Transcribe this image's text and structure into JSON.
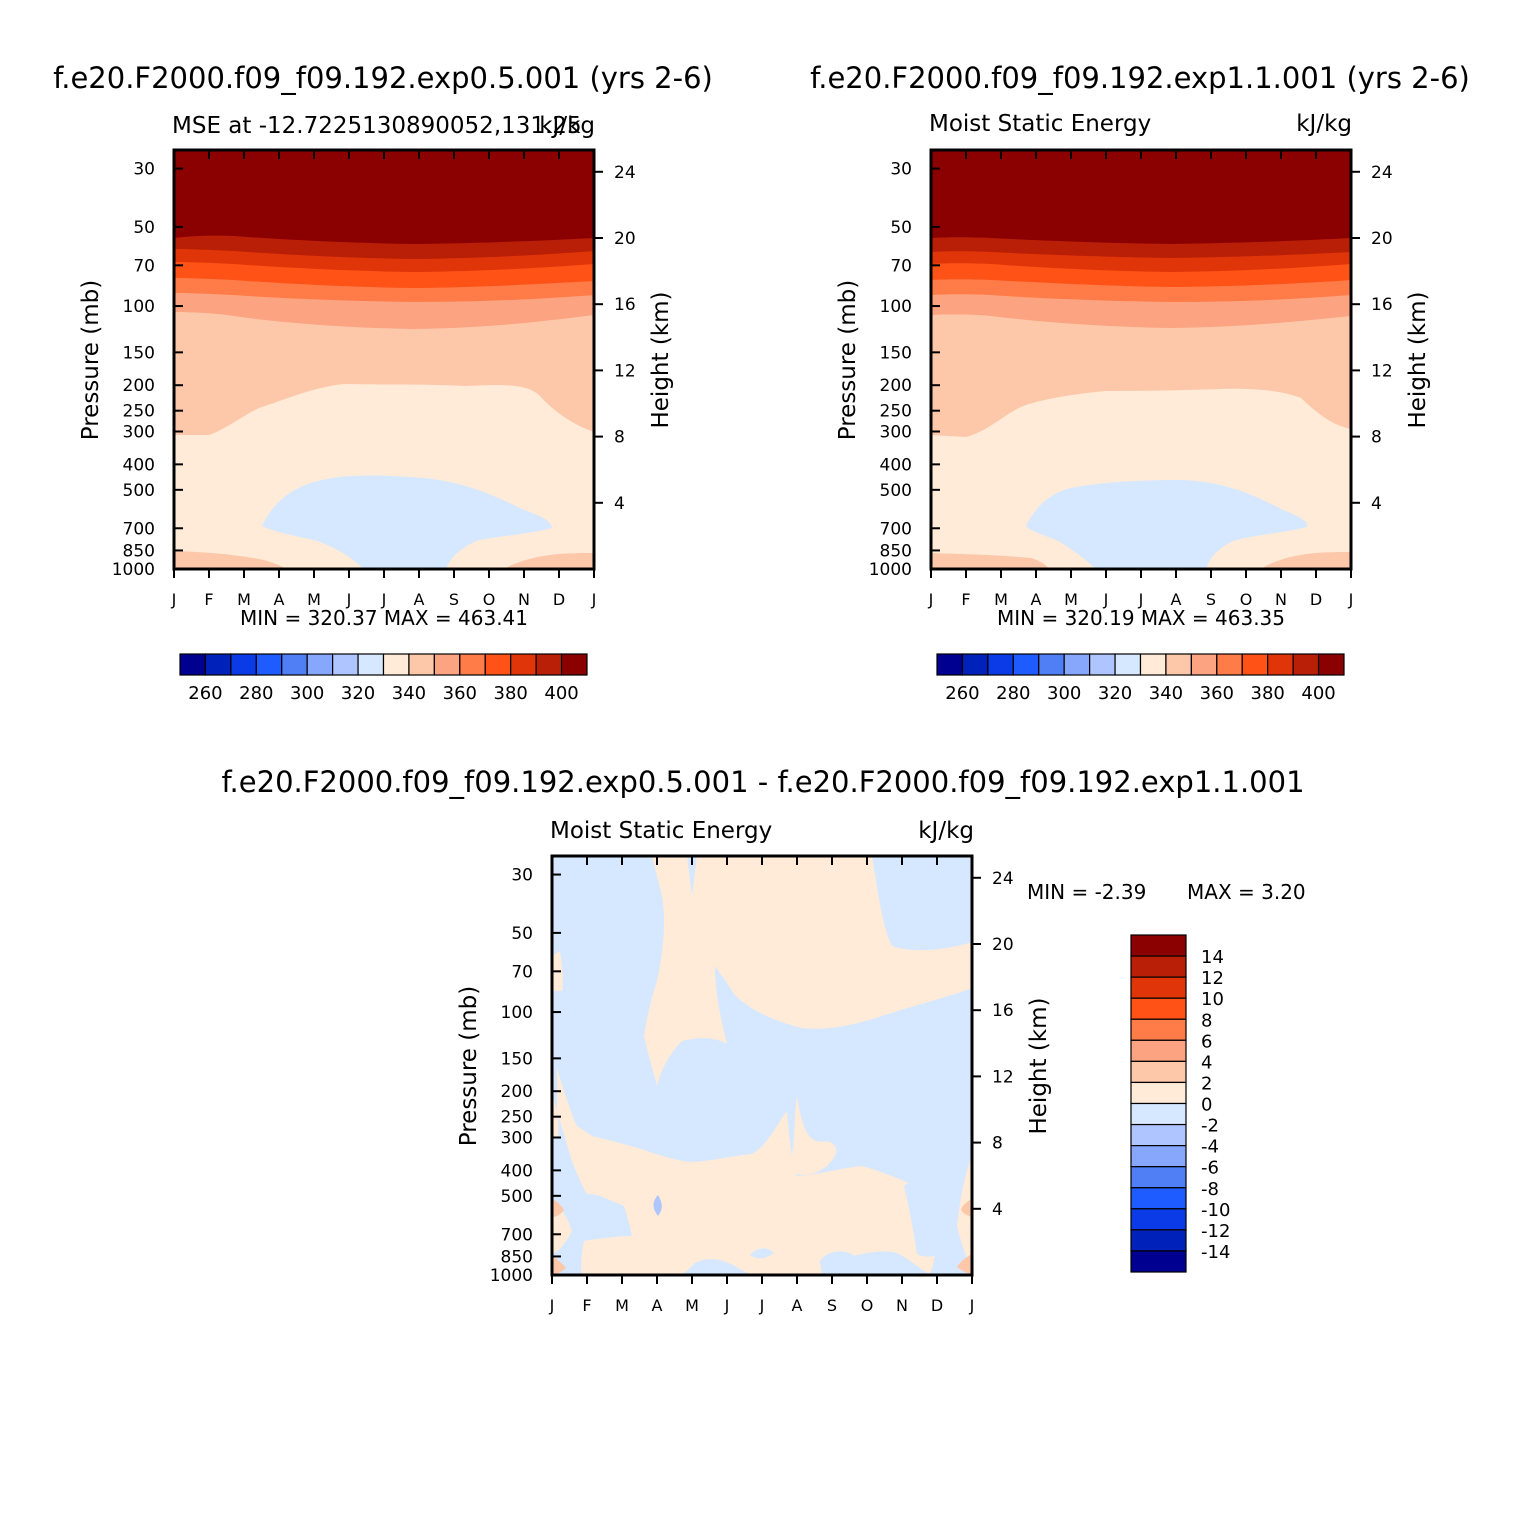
{
  "months": [
    "J",
    "F",
    "M",
    "A",
    "M",
    "J",
    "J",
    "A",
    "S",
    "O",
    "N",
    "D",
    "J"
  ],
  "pressure_ticks": [
    30,
    50,
    70,
    100,
    150,
    200,
    250,
    300,
    400,
    500,
    700,
    850,
    1000
  ],
  "height_ticks": [
    24,
    20,
    16,
    12,
    8,
    4
  ],
  "axis_labels": {
    "left": "Pressure (mb)",
    "right": "Height (km)"
  },
  "colors": {
    "levels_abs": [
      "#000090",
      "#0022bb",
      "#0a3be6",
      "#1f5cff",
      "#4f7ef5",
      "#86a7fb",
      "#aec5ff",
      "#d6e8ff",
      "#ffebd8",
      "#fdc8aa",
      "#fca381",
      "#ff7b48",
      "#ff5216",
      "#e03509",
      "#b81f06",
      "#8b0000"
    ],
    "levels_diff": [
      "#000090",
      "#0022bb",
      "#0a3be6",
      "#1f5cff",
      "#4f7ef5",
      "#86a7fb",
      "#aec5ff",
      "#d6e8ff",
      "#ffebd8",
      "#fdc8aa",
      "#fca381",
      "#ff7b48",
      "#ff5216",
      "#e03509",
      "#b81f06",
      "#8b0000"
    ]
  },
  "chart_data": [
    {
      "type": "heatmap",
      "title": "f.e20.F2000.f09_f09.192.exp0.5.001 (yrs 2-6)",
      "subtitle_left": "MSE at -12.7225130890052,131.25",
      "subtitle_right": "kJ/kg",
      "xlabel": "",
      "ylabel": "Pressure (mb)",
      "ylabel_right": "Height (km)",
      "stats": "MIN = 320.37 MAX = 463.41",
      "colorbar_labels": [
        "260",
        "280",
        "300",
        "320",
        "340",
        "360",
        "380",
        "400"
      ],
      "contour_levels_kJ_kg": [
        250,
        260,
        270,
        280,
        290,
        300,
        310,
        320,
        330,
        340,
        350,
        360,
        370,
        380,
        390,
        400,
        410
      ]
    },
    {
      "type": "heatmap",
      "title": "f.e20.F2000.f09_f09.192.exp1.1.001 (yrs 2-6)",
      "subtitle_left": "Moist Static Energy",
      "subtitle_right": "kJ/kg",
      "xlabel": "",
      "ylabel": "Pressure (mb)",
      "ylabel_right": "Height (km)",
      "stats": "MIN = 320.19 MAX = 463.35",
      "colorbar_labels": [
        "260",
        "280",
        "300",
        "320",
        "340",
        "360",
        "380",
        "400"
      ],
      "contour_levels_kJ_kg": [
        250,
        260,
        270,
        280,
        290,
        300,
        310,
        320,
        330,
        340,
        350,
        360,
        370,
        380,
        390,
        400,
        410
      ]
    },
    {
      "type": "heatmap",
      "title": "f.e20.F2000.f09_f09.192.exp0.5.001 - f.e20.F2000.f09_f09.192.exp1.1.001",
      "subtitle_left": "Moist Static Energy",
      "subtitle_right": "kJ/kg",
      "xlabel": "",
      "ylabel": "Pressure (mb)",
      "ylabel_right": "Height (km)",
      "stats_min": "MIN = -2.39",
      "stats_max": "MAX = 3.20",
      "colorbar_labels": [
        "14",
        "12",
        "10",
        "8",
        "6",
        "4",
        "2",
        "0",
        "-2",
        "-4",
        "-6",
        "-8",
        "-10",
        "-12",
        "-14"
      ],
      "contour_levels_kJ_kg": [
        -16,
        -14,
        -12,
        -10,
        -8,
        -6,
        -4,
        -2,
        0,
        2,
        4,
        6,
        8,
        10,
        12,
        14,
        16
      ]
    }
  ]
}
